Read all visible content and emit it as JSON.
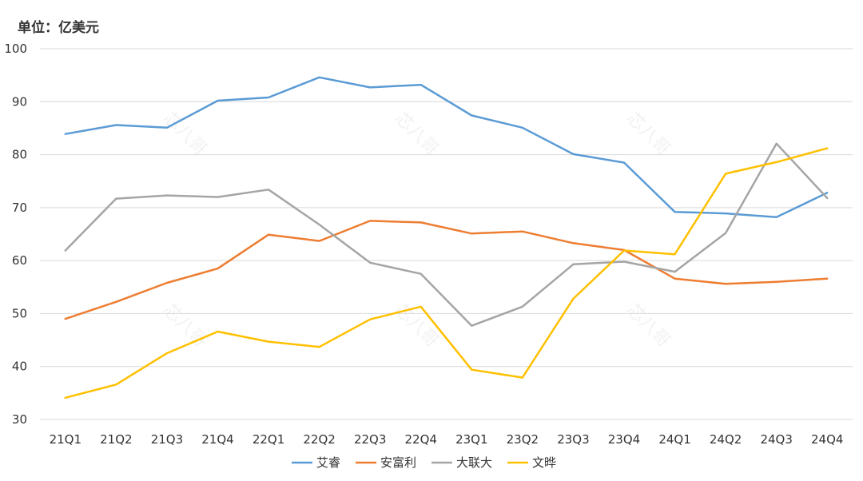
{
  "unit_label": "单位：亿美元",
  "watermark": "芯八哥",
  "chart_data": {
    "type": "line",
    "title": "",
    "xlabel": "",
    "ylabel": "",
    "categories": [
      "21Q1",
      "21Q2",
      "21Q3",
      "21Q4",
      "22Q1",
      "22Q2",
      "22Q3",
      "22Q4",
      "23Q1",
      "23Q2",
      "23Q3",
      "23Q4",
      "24Q1",
      "24Q2",
      "24Q3",
      "24Q4"
    ],
    "ylim": [
      30,
      100
    ],
    "yticks": [
      30,
      40,
      50,
      60,
      70,
      80,
      90,
      100
    ],
    "grid": true,
    "legend_position": "bottom",
    "series": [
      {
        "name": "艾睿",
        "color": "#5B9BD5",
        "values": [
          83.9,
          85.6,
          85.1,
          90.2,
          90.8,
          94.6,
          92.7,
          93.2,
          87.4,
          85.1,
          80.1,
          78.5,
          69.2,
          68.9,
          68.2,
          72.8
        ]
      },
      {
        "name": "安富利",
        "color": "#ED7D31",
        "values": [
          49.0,
          52.2,
          55.8,
          58.5,
          64.9,
          63.7,
          67.5,
          67.2,
          65.1,
          65.5,
          63.3,
          62.0,
          56.6,
          55.6,
          56.0,
          56.6
        ]
      },
      {
        "name": "大联大",
        "color": "#A5A5A5",
        "values": [
          61.9,
          71.7,
          72.3,
          72.0,
          73.4,
          66.8,
          59.6,
          57.5,
          47.7,
          51.3,
          59.3,
          59.8,
          57.9,
          65.2,
          82.1,
          71.8
        ]
      },
      {
        "name": "文晔",
        "color": "#FFC000",
        "values": [
          34.1,
          36.6,
          42.5,
          46.6,
          44.7,
          43.7,
          48.9,
          51.3,
          39.4,
          37.9,
          52.8,
          61.9,
          61.2,
          76.4,
          78.6,
          81.2
        ]
      }
    ]
  }
}
